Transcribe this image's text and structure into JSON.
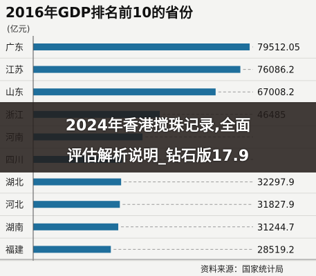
{
  "chart_data": {
    "type": "bar",
    "orientation": "horizontal",
    "title": "2016年GDP排名前10的省份",
    "unit_label": "(亿元)",
    "categories": [
      "广东",
      "江苏",
      "山东",
      "浙江",
      "河南",
      "四川",
      "湖北",
      "河北",
      "湖南",
      "福建"
    ],
    "value_labels": [
      "79512.05",
      "76086.2",
      "67008.2",
      "46485",
      "",
      "",
      "32297.9",
      "31827.9",
      "31244.7",
      "28519.2"
    ],
    "values": [
      79512.05,
      76086.2,
      67008.2,
      46485,
      40160,
      32680,
      32297.9,
      31827.9,
      31244.7,
      28519.2
    ],
    "xlim": [
      0,
      80000
    ],
    "grid": false,
    "legend": "none",
    "bar_color": "#1f6f9c",
    "source": "资料来源：国家统计局"
  },
  "overlay": {
    "line1": "2024年香港搅珠记录,全面",
    "line2": "评估解析说明_钻石版17.9",
    "color": "#231c1a"
  }
}
